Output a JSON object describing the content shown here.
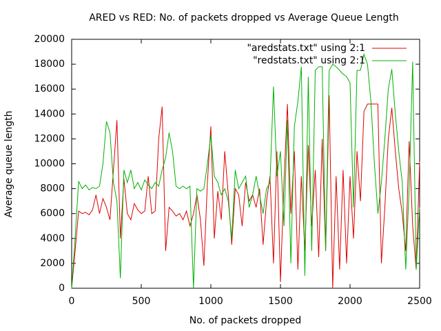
{
  "chart_data": {
    "type": "line",
    "title": "ARED vs RED: No. of packets dropped vs Average Queue Length",
    "xlabel": "No. of packets dropped",
    "ylabel": "Average queue length",
    "x": [
      0,
      25,
      50,
      75,
      100,
      125,
      150,
      175,
      200,
      225,
      250,
      275,
      300,
      325,
      350,
      375,
      400,
      425,
      450,
      475,
      500,
      525,
      550,
      575,
      600,
      625,
      650,
      675,
      700,
      725,
      750,
      775,
      800,
      825,
      850,
      875,
      900,
      925,
      950,
      975,
      1000,
      1025,
      1050,
      1075,
      1100,
      1125,
      1150,
      1175,
      1200,
      1225,
      1250,
      1275,
      1300,
      1325,
      1350,
      1375,
      1400,
      1425,
      1450,
      1475,
      1500,
      1525,
      1550,
      1575,
      1600,
      1625,
      1650,
      1675,
      1700,
      1725,
      1750,
      1775,
      1800,
      1825,
      1850,
      1875,
      1900,
      1925,
      1950,
      1975,
      2000,
      2025,
      2050,
      2075,
      2100,
      2125,
      2150,
      2175,
      2200,
      2225,
      2250,
      2275,
      2300,
      2325,
      2350,
      2375,
      2400,
      2425,
      2450,
      2475,
      2500
    ],
    "series": [
      {
        "name": "\"aredstats.txt\" using 2:1",
        "color": "#dd0000",
        "values": [
          0,
          3000,
          6200,
          6000,
          6100,
          5900,
          6300,
          7500,
          6000,
          7200,
          6500,
          5500,
          9500,
          13500,
          4000,
          8800,
          6000,
          5500,
          6800,
          6300,
          6000,
          6200,
          9000,
          6000,
          6200,
          12000,
          14600,
          3000,
          6500,
          6200,
          5800,
          6000,
          5500,
          6200,
          5000,
          6000,
          7500,
          5500,
          1800,
          8500,
          13000,
          4000,
          7800,
          5500,
          11000,
          7500,
          3500,
          8000,
          7500,
          5000,
          8500,
          7000,
          7500,
          6500,
          8000,
          3500,
          7000,
          9000,
          2000,
          11000,
          500,
          8500,
          14800,
          6000,
          11000,
          1500,
          9000,
          3000,
          11500,
          5000,
          9500,
          2500,
          12000,
          3000,
          15500,
          0,
          9000,
          1500,
          9500,
          2000,
          9000,
          4000,
          11000,
          7000,
          14200,
          14800,
          14800,
          14800,
          14800,
          2000,
          6500,
          12000,
          14500,
          11000,
          8000,
          6000,
          3000,
          11800,
          5000,
          1500,
          10200
        ]
      },
      {
        "name": "\"redstats.txt\" using 2:1",
        "color": "#00b000",
        "values": [
          0,
          4000,
          8600,
          8000,
          8300,
          7900,
          8100,
          8000,
          8200,
          10000,
          13400,
          12500,
          8500,
          7000,
          800,
          9500,
          8500,
          9500,
          8000,
          8500,
          7900,
          8700,
          8300,
          8000,
          8500,
          8200,
          9500,
          10500,
          12500,
          11000,
          8200,
          8000,
          8200,
          8000,
          8200,
          0,
          8000,
          7800,
          8000,
          10000,
          12300,
          9000,
          8500,
          7500,
          8000,
          7000,
          4000,
          9500,
          8000,
          8500,
          9000,
          6500,
          7500,
          9000,
          7500,
          6000,
          8000,
          8500,
          16200,
          9000,
          11000,
          5000,
          13500,
          2000,
          13000,
          15000,
          17800,
          1000,
          17000,
          3000,
          17500,
          17800,
          17800,
          3000,
          17500,
          18000,
          17800,
          17500,
          17200,
          17000,
          16500,
          6500,
          17500,
          17500,
          18800,
          18000,
          15000,
          10000,
          6000,
          8500,
          12000,
          16000,
          17600,
          14000,
          11000,
          8500,
          1500,
          8000,
          18200,
          1500,
          6500
        ]
      }
    ],
    "xlim": [
      0,
      2500
    ],
    "xticks": [
      0,
      500,
      1000,
      1500,
      2000,
      2500
    ],
    "ylim": [
      0,
      20000
    ],
    "yticks": [
      0,
      2000,
      4000,
      6000,
      8000,
      10000,
      12000,
      14000,
      16000,
      18000,
      20000
    ],
    "legend": "top-right"
  }
}
